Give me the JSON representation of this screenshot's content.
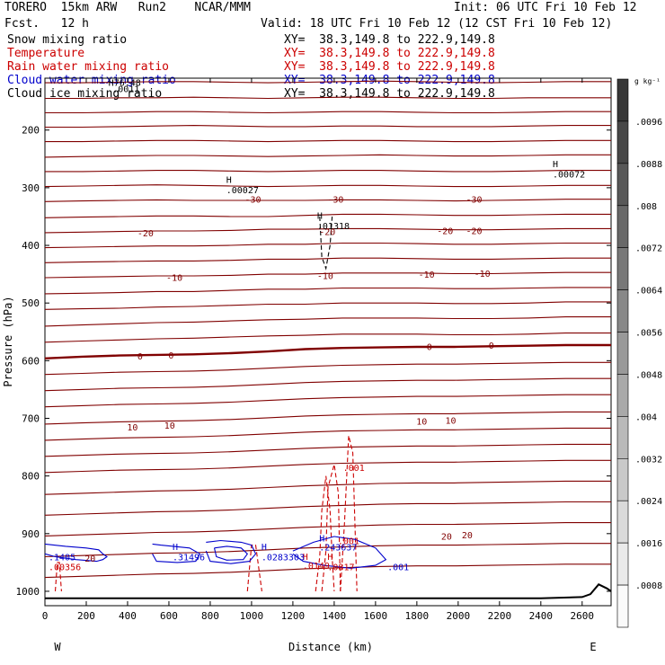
{
  "header": {
    "model": "TORERO  15km ARW   Run2    NCAR/MMM",
    "init": "Init: 06 UTC Fri 10 Feb 12",
    "fcst": "Fcst.   12 h",
    "valid": "Valid: 18 UTC Fri 10 Feb 12 (12 CST Fri 10 Feb 12)"
  },
  "fields": [
    {
      "label": "Snow mixing ratio",
      "xy": "XY=  38.3,149.8 to 222.9,149.8",
      "color": "#000000"
    },
    {
      "label": "Temperature",
      "xy": "XY=  38.3,149.8 to 222.9,149.8",
      "color": "#cc0000"
    },
    {
      "label": "Rain water mixing ratio",
      "xy": "XY=  38.3,149.8 to 222.9,149.8",
      "color": "#cc0000"
    },
    {
      "label": "Cloud water mixing ratio",
      "xy": "XY=  38.3,149.8 to 222.9,149.8",
      "color": "#0000cc"
    },
    {
      "label": "Cloud ice mixing ratio",
      "xy": "XY=  38.3,149.8 to 222.9,149.8",
      "color": "#000000"
    }
  ],
  "chart_data": {
    "type": "line",
    "xlabel": "Distance (km)",
    "ylabel": "Pressure (hPa)",
    "xlim": [
      0,
      2740
    ],
    "ylim": [
      1025,
      110
    ],
    "x_ticks": [
      "0",
      "200",
      "400",
      "600",
      "800",
      "1000",
      "1200",
      "1400",
      "1600",
      "1800",
      "2000",
      "2200",
      "2400",
      "2600"
    ],
    "x_tick_values": [
      0,
      200,
      400,
      600,
      800,
      1000,
      1200,
      1400,
      1600,
      1800,
      2000,
      2200,
      2400,
      2600
    ],
    "y_ticks": [
      "200",
      "300",
      "400",
      "500",
      "600",
      "700",
      "800",
      "900",
      "1000"
    ],
    "y_tick_values": [
      200,
      300,
      400,
      500,
      600,
      700,
      800,
      900,
      1000
    ],
    "west_label": "W",
    "east_label": "E",
    "isotherm_color": "#800000",
    "isotherms": [
      {
        "p": [
          118,
          118,
          117,
          116,
          116,
          117,
          118,
          117,
          116,
          115,
          116,
          117,
          118,
          117,
          116,
          116
        ],
        "label": ""
      },
      {
        "p": [
          145,
          145,
          144,
          144,
          143,
          144,
          145,
          144,
          143,
          143,
          144,
          145,
          145,
          144,
          144,
          144
        ],
        "label": ""
      },
      {
        "p": [
          170,
          170,
          169,
          168,
          168,
          169,
          170,
          169,
          168,
          168,
          169,
          170,
          170,
          169,
          168,
          168
        ],
        "label": ""
      },
      {
        "p": [
          195,
          195,
          194,
          193,
          192,
          193,
          194,
          194,
          193,
          193,
          194,
          194,
          194,
          193,
          192,
          192
        ],
        "label": ""
      },
      {
        "p": [
          220,
          220,
          219,
          218,
          218,
          219,
          220,
          219,
          218,
          218,
          219,
          220,
          220,
          219,
          218,
          218
        ],
        "label": ""
      },
      {
        "p": [
          247,
          246,
          245,
          244,
          244,
          245,
          246,
          245,
          244,
          243,
          244,
          245,
          245,
          244,
          243,
          243
        ],
        "label": ""
      },
      {
        "p": [
          272,
          272,
          271,
          270,
          270,
          271,
          272,
          271,
          270,
          270,
          271,
          272,
          272,
          271,
          270,
          270
        ],
        "label": ""
      },
      {
        "p": [
          298,
          297,
          296,
          295,
          296,
          297,
          298,
          297,
          296,
          296,
          297,
          298,
          298,
          297,
          296,
          296
        ],
        "label": ""
      },
      {
        "p": [
          324,
          323,
          322,
          321,
          322,
          322,
          322,
          322,
          321,
          321,
          322,
          323,
          322,
          321,
          320,
          320
        ],
        "label": "-30"
      },
      {
        "p": [
          352,
          351,
          350,
          349,
          349,
          350,
          350,
          348,
          346,
          346,
          347,
          348,
          348,
          347,
          346,
          346
        ],
        "label": ""
      },
      {
        "p": [
          378,
          377,
          376,
          375,
          375,
          374,
          372,
          372,
          371,
          371,
          372,
          373,
          373,
          372,
          371,
          371
        ],
        "label": "-20"
      },
      {
        "p": [
          404,
          403,
          402,
          401,
          401,
          400,
          398,
          398,
          396,
          396,
          397,
          398,
          398,
          397,
          396,
          396
        ],
        "label": ""
      },
      {
        "p": [
          430,
          429,
          428,
          427,
          427,
          426,
          424,
          424,
          422,
          422,
          423,
          424,
          424,
          423,
          422,
          422
        ],
        "label": ""
      },
      {
        "p": [
          456,
          455,
          454,
          453,
          453,
          452,
          450,
          450,
          448,
          448,
          448,
          449,
          449,
          448,
          447,
          447
        ],
        "label": "-10"
      },
      {
        "p": [
          484,
          483,
          482,
          480,
          480,
          478,
          476,
          476,
          474,
          474,
          474,
          475,
          475,
          474,
          473,
          473
        ],
        "label": ""
      },
      {
        "p": [
          511,
          510,
          509,
          507,
          506,
          504,
          502,
          502,
          500,
          500,
          500,
          501,
          501,
          500,
          498,
          498
        ],
        "label": ""
      },
      {
        "p": [
          540,
          538,
          536,
          534,
          533,
          531,
          529,
          528,
          526,
          526,
          526,
          527,
          527,
          526,
          524,
          524
        ],
        "label": ""
      },
      {
        "p": [
          568,
          566,
          564,
          562,
          561,
          559,
          557,
          556,
          554,
          554,
          554,
          555,
          555,
          554,
          552,
          552
        ],
        "label": ""
      },
      {
        "p": [
          596,
          593,
          591,
          590,
          589,
          587,
          584,
          580,
          578,
          577,
          576,
          576,
          575,
          574,
          573,
          573
        ],
        "label": "0"
      },
      {
        "p": [
          624,
          622,
          620,
          619,
          618,
          616,
          613,
          610,
          608,
          607,
          606,
          606,
          605,
          604,
          603,
          603
        ],
        "label": ""
      },
      {
        "p": [
          652,
          650,
          648,
          647,
          646,
          644,
          641,
          638,
          636,
          635,
          634,
          634,
          633,
          632,
          631,
          631
        ],
        "label": ""
      },
      {
        "p": [
          680,
          678,
          676,
          675,
          674,
          672,
          669,
          666,
          664,
          663,
          662,
          662,
          661,
          660,
          659,
          659
        ],
        "label": ""
      },
      {
        "p": [
          710,
          708,
          706,
          705,
          704,
          702,
          699,
          696,
          694,
          693,
          692,
          692,
          691,
          690,
          689,
          689
        ],
        "label": "10"
      },
      {
        "p": [
          738,
          736,
          734,
          733,
          732,
          730,
          727,
          724,
          722,
          721,
          720,
          720,
          719,
          718,
          717,
          717
        ],
        "label": ""
      },
      {
        "p": [
          766,
          764,
          762,
          761,
          760,
          758,
          755,
          752,
          750,
          749,
          748,
          748,
          747,
          746,
          745,
          745
        ],
        "label": ""
      },
      {
        "p": [
          794,
          792,
          790,
          789,
          788,
          786,
          783,
          780,
          778,
          777,
          776,
          776,
          775,
          774,
          773,
          773
        ],
        "label": ""
      },
      {
        "p": [
          832,
          830,
          828,
          826,
          825,
          823,
          820,
          817,
          815,
          813,
          812,
          812,
          811,
          810,
          809,
          809
        ],
        "label": ""
      },
      {
        "p": [
          868,
          866,
          864,
          862,
          861,
          859,
          856,
          853,
          851,
          849,
          848,
          848,
          847,
          846,
          845,
          845
        ],
        "label": "20"
      },
      {
        "p": [
          904,
          902,
          900,
          898,
          897,
          895,
          892,
          889,
          887,
          885,
          884,
          884,
          883,
          882,
          881,
          881
        ],
        "label": ""
      },
      {
        "p": [
          940,
          938,
          936,
          934,
          933,
          931,
          928,
          925,
          923,
          921,
          920,
          920,
          919,
          918,
          917,
          917
        ],
        "label": ""
      },
      {
        "p": [
          976,
          974,
          972,
          970,
          969,
          967,
          964,
          961,
          959,
          957,
          956,
          956,
          955,
          954,
          953,
          953
        ],
        "label": ""
      }
    ],
    "isotherm_x": [
      0,
      180,
      360,
      540,
      720,
      900,
      1080,
      1260,
      1440,
      1620,
      1800,
      1980,
      2160,
      2340,
      2520,
      2740
    ],
    "temperature_labels": [
      {
        "text": "-30",
        "x": 950,
        "p": 320
      },
      {
        "text": "-30",
        "x": 1350,
        "p": 320
      },
      {
        "text": "-30",
        "x": 2020,
        "p": 320
      },
      {
        "text": "-20",
        "x": 430,
        "p": 378
      },
      {
        "text": "-20",
        "x": 1310,
        "p": 376
      },
      {
        "text": "-20",
        "x": 1880,
        "p": 374
      },
      {
        "text": "-20",
        "x": 2020,
        "p": 374
      },
      {
        "text": "-10",
        "x": 570,
        "p": 455
      },
      {
        "text": "-10",
        "x": 1300,
        "p": 452
      },
      {
        "text": "-10",
        "x": 1790,
        "p": 450
      },
      {
        "text": "-10",
        "x": 2060,
        "p": 448
      },
      {
        "text": "0",
        "x": 430,
        "p": 592
      },
      {
        "text": "0",
        "x": 580,
        "p": 590
      },
      {
        "text": "0",
        "x": 1830,
        "p": 575
      },
      {
        "text": "0",
        "x": 2130,
        "p": 573
      },
      {
        "text": "10",
        "x": 380,
        "p": 715
      },
      {
        "text": "10",
        "x": 560,
        "p": 712
      },
      {
        "text": "10",
        "x": 1780,
        "p": 705
      },
      {
        "text": "10",
        "x": 1920,
        "p": 703
      },
      {
        "text": "20",
        "x": 1900,
        "p": 904
      },
      {
        "text": "20",
        "x": 2000,
        "p": 902
      },
      {
        "text": "20",
        "x": 175,
        "p": 942
      }
    ],
    "snow_labels": [
      {
        "text": "H",
        "x": 860,
        "p": 285
      },
      {
        "text": ".00027",
        "x": 860,
        "p": 303
      },
      {
        "text": "H",
        "x": 2440,
        "p": 258
      },
      {
        "text": ".00072",
        "x": 2440,
        "p": 276
      }
    ],
    "ice_labels": [
      {
        "text": "H",
        "x": 1300,
        "p": 348
      },
      {
        "text": ".01318",
        "x": 1300,
        "p": 366
      }
    ],
    "rain_labels": [
      {
        "text": ".001",
        "x": 1425,
        "p": 785
      },
      {
        "text": "H",
        "x": 1230,
        "p": 939
      },
      {
        "text": ".0149",
        "x": 1230,
        "p": 955
      },
      {
        "text": "H",
        "x": 1350,
        "p": 939
      },
      {
        "text": ".0817",
        "x": 1350,
        "p": 957
      },
      {
        "text": ".00356",
        "x": 0,
        "p": 957
      },
      {
        "text": ".001",
        "x": 1400,
        "p": 912
      }
    ],
    "cloud_labels": [
      {
        "text": ".1405",
        "x": 0,
        "p": 940
      },
      {
        "text": "H",
        "x": 600,
        "p": 922
      },
      {
        "text": ".31496",
        "x": 600,
        "p": 940
      },
      {
        "text": "H",
        "x": 1030,
        "p": 922
      },
      {
        "text": ".0283303",
        "x": 1030,
        "p": 940
      },
      {
        "text": "H",
        "x": 1310,
        "p": 907
      },
      {
        "text": ".243637",
        "x": 1310,
        "p": 923
      },
      {
        "text": ".001",
        "x": 1640,
        "p": 957
      }
    ],
    "overlap_labels": [
      {
        "text": "H76.48",
        "x": 290,
        "p": 117
      },
      {
        "text": ".0011",
        "x": 310,
        "p": 128
      }
    ],
    "colorbar": {
      "unit": "g kg⁻¹",
      "ticks": [
        ".0096",
        ".0088",
        ".008",
        ".0072",
        ".0064",
        ".0056",
        ".0048",
        ".004",
        ".0032",
        ".0024",
        ".0016",
        ".0008"
      ],
      "values": [
        0.0096,
        0.0088,
        0.008,
        0.0072,
        0.0064,
        0.0056,
        0.0048,
        0.004,
        0.0032,
        0.0024,
        0.0016,
        0.0008
      ],
      "max": 0.0104
    }
  }
}
